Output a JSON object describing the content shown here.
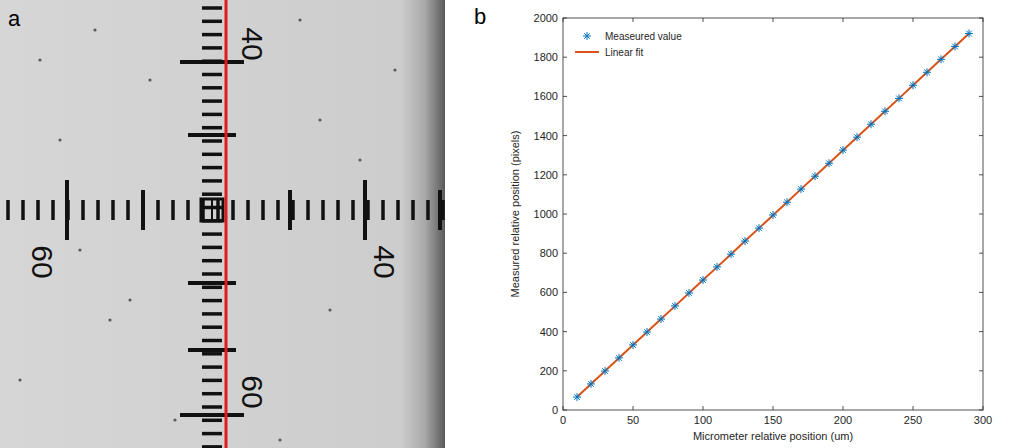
{
  "image_panel": {
    "letter": "a",
    "labels": [
      "40",
      "60",
      "40",
      "60"
    ]
  },
  "chart_data": {
    "type": "scatter",
    "letter": "b",
    "x_label": "Micrometer relative position (um)",
    "y_label": "Measured relative position (pixels)",
    "x": [
      10,
      20,
      30,
      40,
      50,
      60,
      70,
      80,
      90,
      100,
      110,
      120,
      130,
      140,
      150,
      160,
      170,
      180,
      190,
      200,
      210,
      220,
      230,
      240,
      250,
      260,
      270,
      280,
      290
    ],
    "series": [
      {
        "name": "Measeured value",
        "type": "scatter",
        "color": "#0072bd",
        "marker": "asterisk",
        "values": [
          66,
          133,
          199,
          266,
          332,
          398,
          464,
          531,
          597,
          663,
          730,
          795,
          862,
          928,
          995,
          1060,
          1127,
          1193,
          1259,
          1326,
          1392,
          1458,
          1524,
          1590,
          1657,
          1723,
          1789,
          1855,
          1921
        ]
      },
      {
        "name": "Linear fit",
        "type": "line",
        "color": "#d95319",
        "line_style": "solid",
        "values": [
          66,
          133,
          199,
          265,
          332,
          398,
          464,
          530,
          597,
          663,
          729,
          795,
          862,
          928,
          994,
          1060,
          1127,
          1193,
          1259,
          1325,
          1392,
          1458,
          1524,
          1590,
          1657,
          1723,
          1789,
          1855,
          1921
        ]
      }
    ],
    "xlim": [
      0,
      300
    ],
    "xticks": [
      0,
      50,
      100,
      150,
      200,
      250,
      300
    ],
    "ylim": [
      0,
      2000
    ],
    "yticks": [
      0,
      200,
      400,
      600,
      800,
      1000,
      1200,
      1400,
      1600,
      1800,
      2000
    ],
    "grid": false,
    "legend": "northwest"
  }
}
